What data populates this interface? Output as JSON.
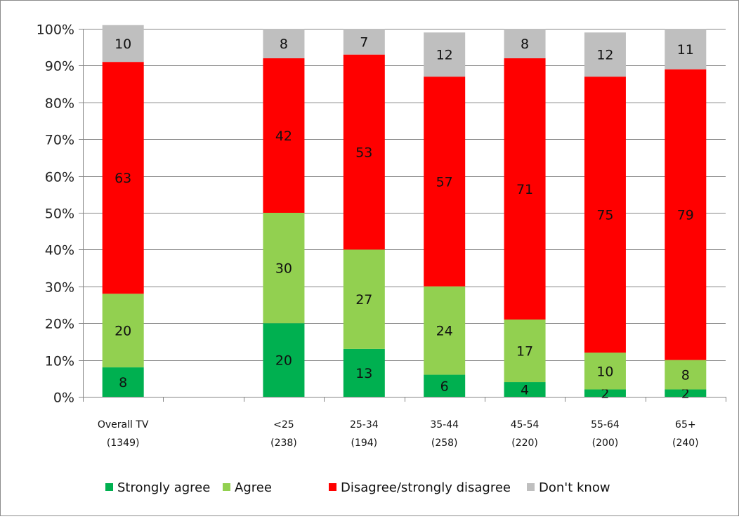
{
  "chart_data": {
    "type": "bar",
    "stacked": true,
    "percent_stacked": true,
    "title": "",
    "xlabel": "",
    "ylabel": "",
    "ylim": [
      0,
      100
    ],
    "y_ticks": [
      "0%",
      "10%",
      "20%",
      "30%",
      "40%",
      "50%",
      "60%",
      "70%",
      "80%",
      "90%",
      "100%"
    ],
    "grid": true,
    "legend_position": "bottom",
    "categories": [
      {
        "line1": "Overall TV",
        "line2": "(1349)"
      },
      {
        "line1": "",
        "line2": ""
      },
      {
        "line1": "<25",
        "line2": "(238)"
      },
      {
        "line1": "25-34",
        "line2": "(194)"
      },
      {
        "line1": "35-44",
        "line2": "(258)"
      },
      {
        "line1": "45-54",
        "line2": "(220)"
      },
      {
        "line1": "55-64",
        "line2": "(200)"
      },
      {
        "line1": "65+",
        "line2": "(240)"
      }
    ],
    "series": [
      {
        "name": "Strongly agree",
        "color": "#00b050",
        "values": [
          8,
          null,
          20,
          13,
          6,
          4,
          2,
          2
        ]
      },
      {
        "name": "Agree",
        "color": "#92d050",
        "values": [
          20,
          null,
          30,
          27,
          24,
          17,
          10,
          8
        ]
      },
      {
        "name": "Disagree/strongly  disagree",
        "color": "#ff0000",
        "values": [
          63,
          null,
          42,
          53,
          57,
          71,
          75,
          79
        ]
      },
      {
        "name": "Don't know",
        "color": "#bfbfbf",
        "values": [
          10,
          null,
          8,
          7,
          12,
          8,
          12,
          11
        ]
      }
    ]
  }
}
